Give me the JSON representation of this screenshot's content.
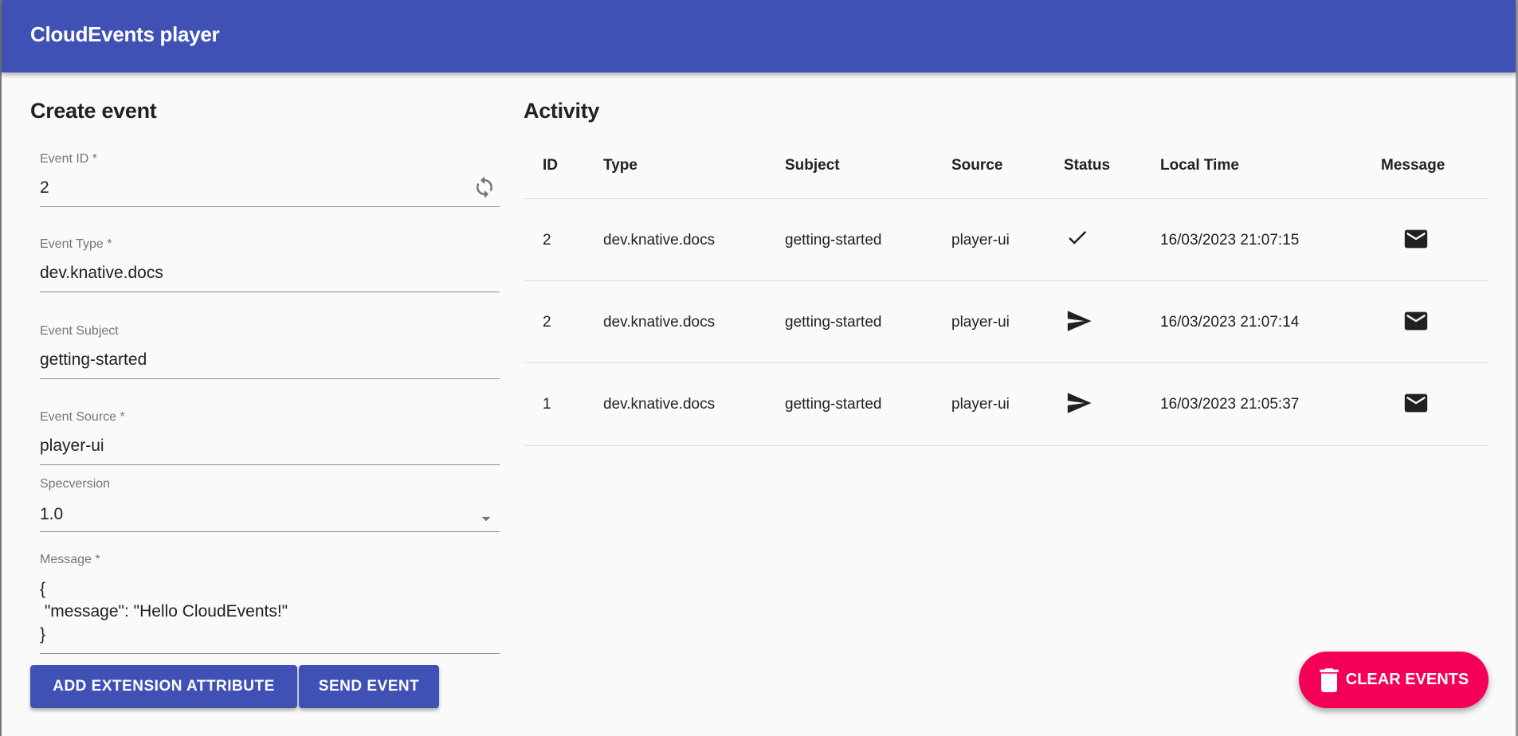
{
  "app": {
    "title": "CloudEvents player"
  },
  "create": {
    "title": "Create event",
    "fields": {
      "id": {
        "label": "Event ID *",
        "value": "2"
      },
      "type": {
        "label": "Event Type *",
        "value": "dev.knative.docs"
      },
      "subject": {
        "label": "Event Subject",
        "value": "getting-started"
      },
      "source": {
        "label": "Event Source *",
        "value": "player-ui"
      },
      "specversion": {
        "label": "Specversion",
        "value": "1.0"
      },
      "message": {
        "label": "Message *",
        "lines": [
          "{",
          " \"message\": \"Hello CloudEvents!\"",
          "}"
        ]
      }
    },
    "add_extension_label": "ADD EXTENSION ATTRIBUTE",
    "send_label": "SEND EVENT"
  },
  "activity": {
    "title": "Activity",
    "columns": [
      "ID",
      "Type",
      "Subject",
      "Source",
      "Status",
      "Local Time",
      "Message"
    ],
    "rows": [
      {
        "id": "2",
        "type": "dev.knative.docs",
        "subject": "getting-started",
        "source": "player-ui",
        "status": "check-icon",
        "time": "16/03/2023 21:07:15",
        "message": "mail-icon"
      },
      {
        "id": "2",
        "type": "dev.knative.docs",
        "subject": "getting-started",
        "source": "player-ui",
        "status": "send-icon",
        "time": "16/03/2023 21:07:14",
        "message": "mail-icon"
      },
      {
        "id": "1",
        "type": "dev.knative.docs",
        "subject": "getting-started",
        "source": "player-ui",
        "status": "send-icon",
        "time": "16/03/2023 21:05:37",
        "message": "mail-icon"
      }
    ]
  },
  "clear_label": "CLEAR EVENTS",
  "colors": {
    "primary": "#3f51b5",
    "accent": "#f50057"
  }
}
